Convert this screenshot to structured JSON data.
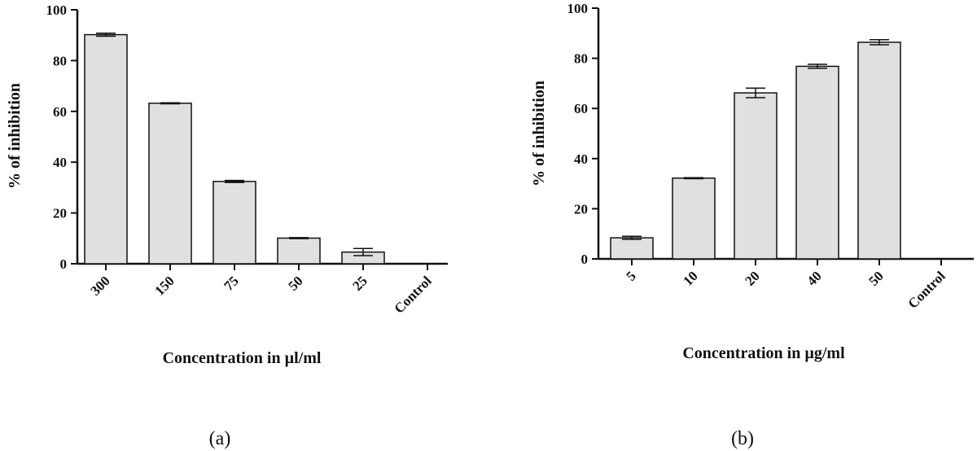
{
  "colors": {
    "bar_fill": "#e0e0e0",
    "stroke": "#111111"
  },
  "chart_data": [
    {
      "type": "bar",
      "panel_label": "(a)",
      "xlabel": "Concentration in µl/ml",
      "ylabel": "% of inhibition",
      "ylim": [
        0,
        100
      ],
      "yticks": [
        "0",
        "20",
        "40",
        "60",
        "80",
        "100"
      ],
      "categories": [
        "300",
        "150",
        "75",
        "50",
        "25",
        "Control"
      ],
      "values": [
        90.2,
        63.2,
        32.4,
        10.1,
        4.6,
        0
      ],
      "errors": [
        0.6,
        0.2,
        0.4,
        0.2,
        1.4,
        0
      ],
      "grid": false
    },
    {
      "type": "bar",
      "panel_label": "(b)",
      "xlabel": "Concentration in µg/ml",
      "ylabel": "% of inhibition",
      "ylim": [
        0,
        100
      ],
      "yticks": [
        "0",
        "20",
        "40",
        "60",
        "80",
        "100"
      ],
      "categories": [
        "5",
        "10",
        "20",
        "40",
        "50",
        "Control"
      ],
      "values": [
        8.4,
        32.2,
        66.2,
        76.8,
        86.4,
        0
      ],
      "errors": [
        0.6,
        0.2,
        1.9,
        0.8,
        1.0,
        0
      ],
      "grid": false
    }
  ]
}
